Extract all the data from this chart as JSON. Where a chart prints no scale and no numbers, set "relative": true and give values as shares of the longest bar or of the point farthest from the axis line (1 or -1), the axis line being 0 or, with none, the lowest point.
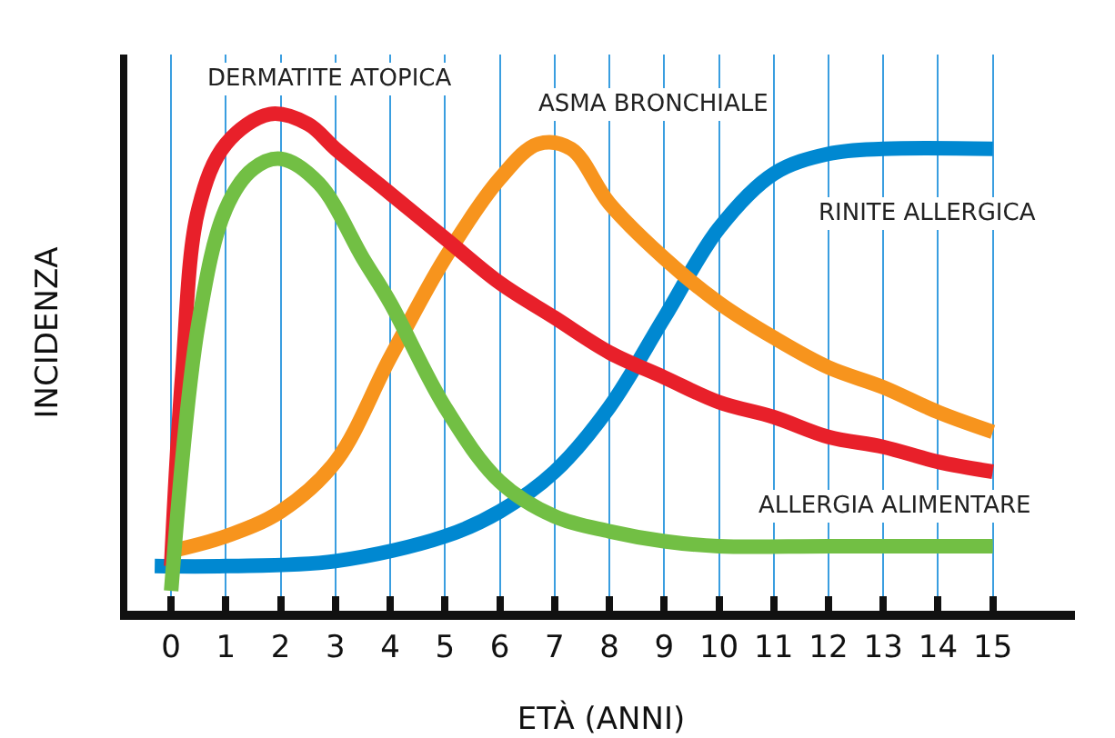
{
  "chart_data": {
    "type": "line",
    "relative": true,
    "xlabel": "ETÀ (ANNI)",
    "ylabel": "INCIDENZA",
    "xlim": [
      -0.8,
      16.5
    ],
    "xticks": [
      0,
      1,
      2,
      3,
      4,
      5,
      6,
      7,
      8,
      9,
      10,
      11,
      12,
      13,
      14,
      15
    ],
    "grid": "x",
    "legend": false,
    "marker": "none",
    "line_style": "solid",
    "series": [
      {
        "name": "RINITE ALLERGICA",
        "color": "#0088d1",
        "x": [
          -0.3,
          1,
          3,
          5,
          6,
          7,
          8,
          9,
          10,
          11,
          12,
          13,
          15
        ],
        "values": [
          0.09,
          0.09,
          0.1,
          0.15,
          0.2,
          0.28,
          0.41,
          0.59,
          0.77,
          0.88,
          0.92,
          0.93,
          0.93
        ]
      },
      {
        "name": "ASMA BRONCHIALE",
        "color": "#f7941d",
        "x": [
          0,
          1,
          2,
          3,
          4,
          5,
          6,
          6.7,
          7.3,
          8,
          9,
          10,
          11,
          12,
          13,
          14,
          15
        ],
        "values": [
          0.12,
          0.15,
          0.2,
          0.3,
          0.51,
          0.71,
          0.87,
          0.94,
          0.93,
          0.82,
          0.71,
          0.62,
          0.55,
          0.49,
          0.45,
          0.4,
          0.36
        ]
      },
      {
        "name": "DERMATITE ATOPICA",
        "color": "#e8202a",
        "x": [
          0,
          0.2,
          0.5,
          1,
          1.8,
          2.5,
          3,
          4,
          5,
          6,
          7,
          8,
          9,
          10,
          11,
          12,
          13,
          14,
          15
        ],
        "values": [
          0.09,
          0.47,
          0.81,
          0.94,
          1,
          0.98,
          0.93,
          0.84,
          0.75,
          0.66,
          0.59,
          0.52,
          0.47,
          0.42,
          0.39,
          0.35,
          0.33,
          0.3,
          0.28
        ]
      },
      {
        "name": "ALLERGIA ALIMENTARE",
        "color": "#72bf44",
        "x": [
          0,
          0.5,
          1,
          1.5,
          2,
          2.7,
          3.5,
          4,
          5,
          6,
          7,
          8,
          9,
          10,
          12,
          15
        ],
        "values": [
          0.04,
          0.58,
          0.81,
          0.89,
          0.91,
          0.86,
          0.71,
          0.62,
          0.41,
          0.26,
          0.19,
          0.16,
          0.14,
          0.13,
          0.13,
          0.13
        ]
      }
    ]
  }
}
